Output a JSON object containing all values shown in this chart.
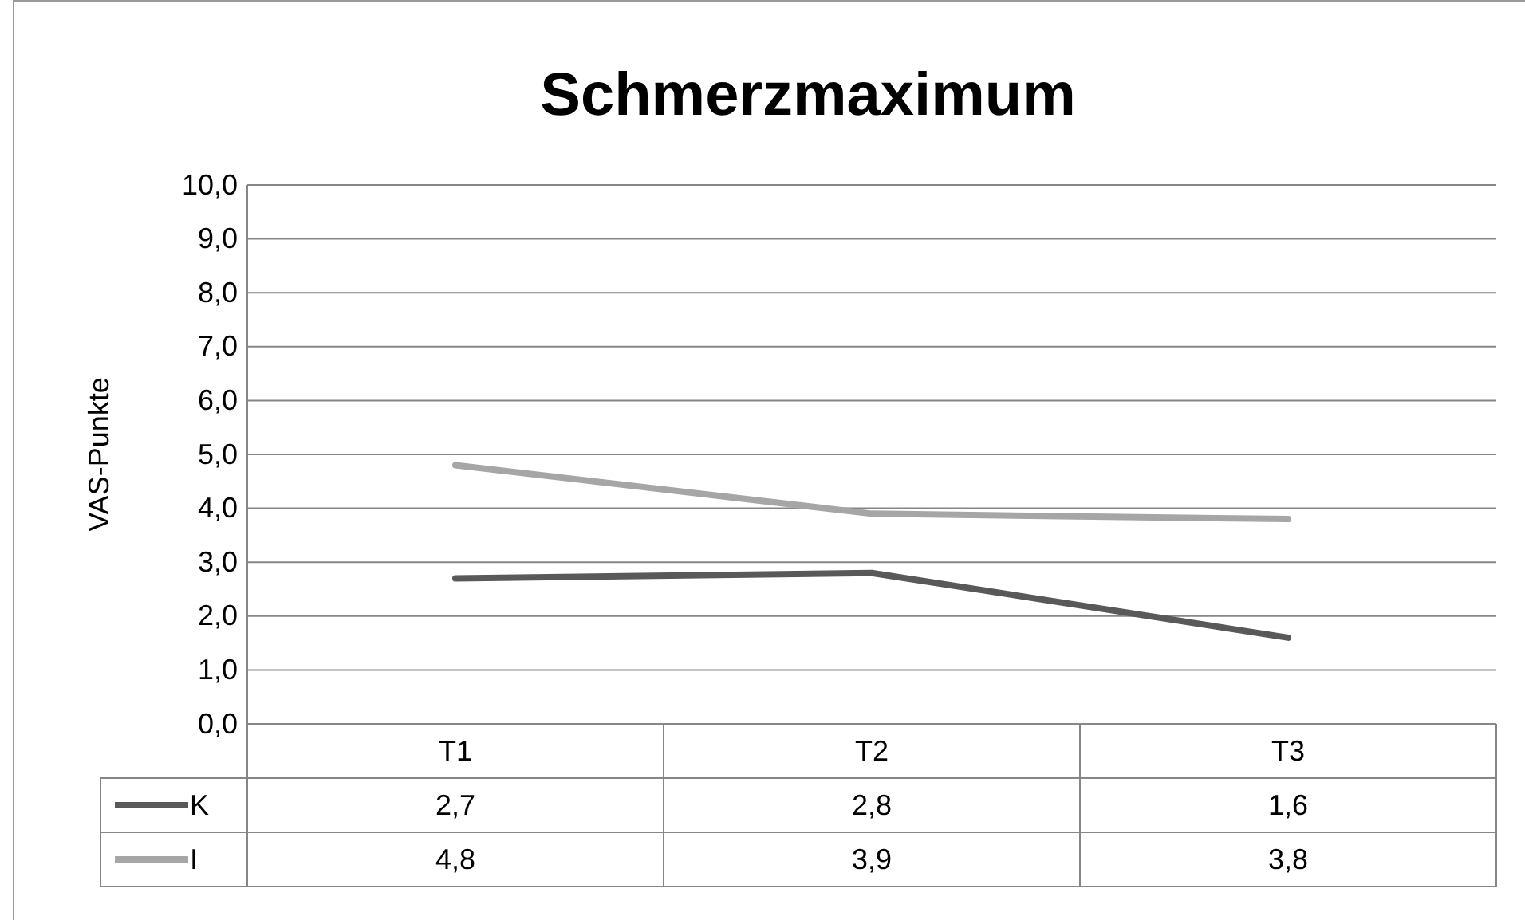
{
  "chart_data": {
    "type": "line",
    "title": "Schmerzmaximum",
    "ylabel": "VAS-Punkte",
    "categories": [
      "T1",
      "T2",
      "T3"
    ],
    "series": [
      {
        "name": "K",
        "color": "#595959",
        "values": [
          2.7,
          2.8,
          1.6
        ],
        "value_labels": [
          "2,7",
          "2,8",
          "1,6"
        ]
      },
      {
        "name": "I",
        "color": "#a6a6a6",
        "values": [
          4.8,
          3.9,
          3.8
        ],
        "value_labels": [
          "4,8",
          "3,9",
          "3,8"
        ]
      }
    ],
    "ylim": [
      0,
      10
    ],
    "yticks": [
      {
        "value": 0,
        "label": "0,0"
      },
      {
        "value": 1,
        "label": "1,0"
      },
      {
        "value": 2,
        "label": "2,0"
      },
      {
        "value": 3,
        "label": "3,0"
      },
      {
        "value": 4,
        "label": "4,0"
      },
      {
        "value": 5,
        "label": "5,0"
      },
      {
        "value": 6,
        "label": "6,0"
      },
      {
        "value": 7,
        "label": "7,0"
      },
      {
        "value": 8,
        "label": "8,0"
      },
      {
        "value": 9,
        "label": "9,0"
      },
      {
        "value": 10,
        "label": "10,0"
      }
    ],
    "grid": "y",
    "legend": "bottom"
  }
}
